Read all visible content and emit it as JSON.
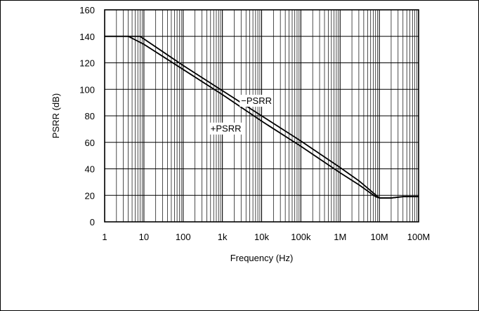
{
  "chart_data": {
    "type": "line",
    "title": "",
    "xlabel": "Frequency (Hz)",
    "ylabel": "PSRR (dB)",
    "xscale": "log",
    "xlim": [
      1,
      100000000
    ],
    "ylim": [
      0,
      160
    ],
    "grid": true,
    "x_ticks": [
      1,
      10,
      100,
      1000,
      10000,
      100000,
      1000000,
      10000000,
      100000000
    ],
    "x_tick_labels": [
      "1",
      "10",
      "100",
      "1k",
      "10k",
      "100k",
      "1M",
      "10M",
      "100M"
    ],
    "y_ticks": [
      0,
      20,
      40,
      60,
      80,
      100,
      120,
      140,
      160
    ],
    "y_tick_labels": [
      "0",
      "20",
      "40",
      "60",
      "80",
      "100",
      "120",
      "140",
      "160"
    ],
    "series": [
      {
        "name": "−PSRR",
        "x": [
          1,
          8,
          100,
          1000,
          10000,
          100000,
          1000000,
          3000000,
          10000000,
          20000000,
          40000000,
          100000000
        ],
        "y": [
          140,
          140,
          118,
          99,
          80,
          61,
          41,
          31,
          18,
          18,
          19,
          19
        ]
      },
      {
        "name": "+PSRR",
        "x": [
          1,
          4,
          10,
          100,
          1000,
          10000,
          100000,
          1000000,
          3000000,
          8000000,
          10000000,
          20000000,
          40000000,
          100000000
        ],
        "y": [
          140,
          140,
          134,
          115,
          96,
          76,
          57,
          37,
          28,
          19,
          18,
          18,
          19,
          19
        ]
      }
    ],
    "annotations": [
      {
        "text": "−PSRR",
        "series": 0
      },
      {
        "text": "+PSRR",
        "series": 1
      }
    ]
  }
}
